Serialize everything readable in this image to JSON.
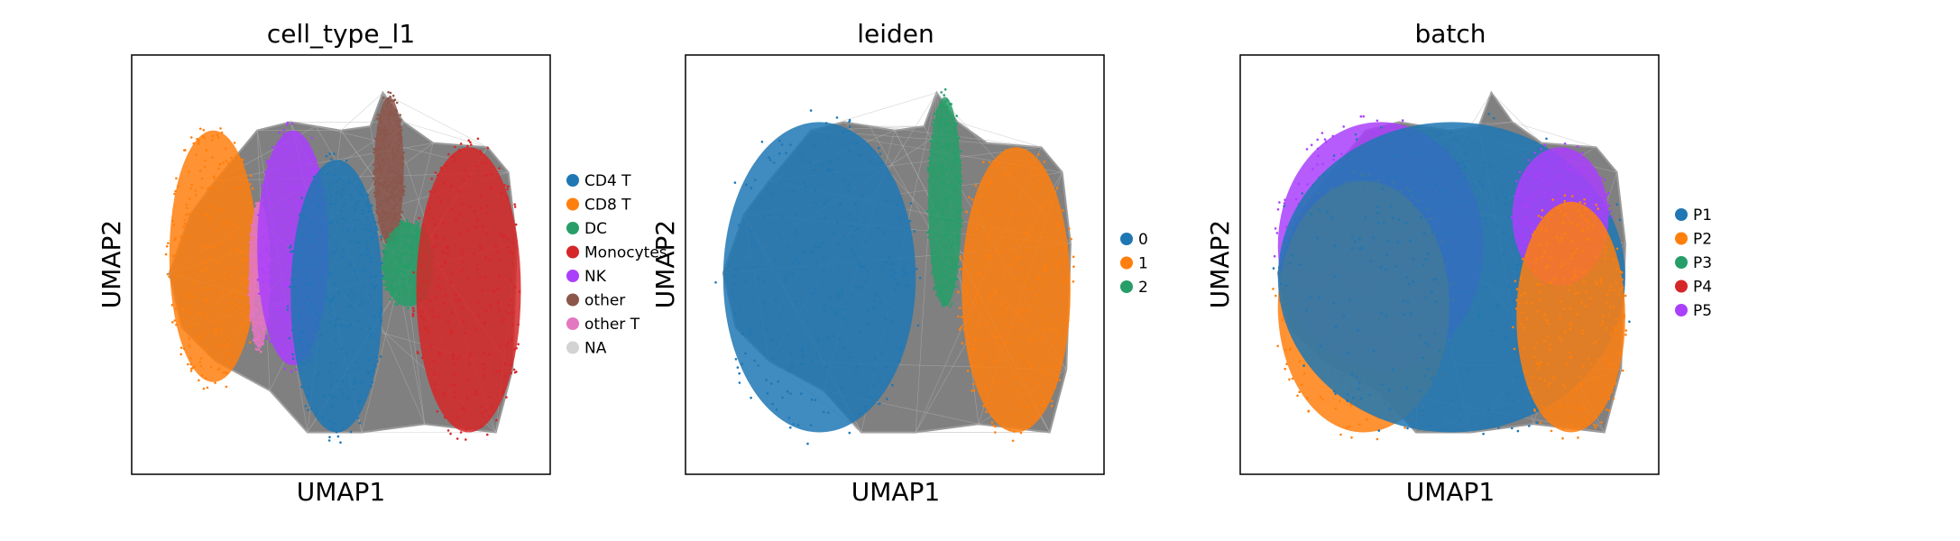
{
  "figure": {
    "grid": false,
    "edge_color": "#808080",
    "axis_frame_color": "#000000"
  },
  "chart_data": [
    {
      "type": "scatter",
      "title": "cell_type_l1",
      "xlabel": "UMAP1",
      "ylabel": "UMAP2",
      "xlim": [
        0,
        1
      ],
      "ylim": [
        0,
        1
      ],
      "legend": {
        "position": "right",
        "entries": [
          {
            "label": "CD4 T",
            "color": "#1f77b4"
          },
          {
            "label": "CD8 T",
            "color": "#ff7f0e"
          },
          {
            "label": "DC",
            "color": "#279e68"
          },
          {
            "label": "Monocytes",
            "color": "#d62728"
          },
          {
            "label": "NK",
            "color": "#aa40fc"
          },
          {
            "label": "other",
            "color": "#8c564b"
          },
          {
            "label": "other T",
            "color": "#e377c2"
          },
          {
            "label": "NA",
            "color": "#d3d3d3"
          }
        ]
      },
      "groups": [
        {
          "label": "CD8 T",
          "x": [
            0.09,
            0.3
          ],
          "y": [
            0.22,
            0.82
          ]
        },
        {
          "label": "other T",
          "x": [
            0.28,
            0.33
          ],
          "y": [
            0.3,
            0.65
          ]
        },
        {
          "label": "NK",
          "x": [
            0.3,
            0.47
          ],
          "y": [
            0.26,
            0.82
          ]
        },
        {
          "label": "CD4 T",
          "x": [
            0.38,
            0.6
          ],
          "y": [
            0.1,
            0.75
          ]
        },
        {
          "label": "other",
          "x": [
            0.58,
            0.65
          ],
          "y": [
            0.55,
            0.9
          ]
        },
        {
          "label": "DC",
          "x": [
            0.6,
            0.72
          ],
          "y": [
            0.4,
            0.6
          ]
        },
        {
          "label": "Monocytes",
          "x": [
            0.68,
            0.93
          ],
          "y": [
            0.1,
            0.78
          ]
        }
      ]
    },
    {
      "type": "scatter",
      "title": "leiden",
      "xlabel": "UMAP1",
      "ylabel": "UMAP2",
      "xlim": [
        0,
        1
      ],
      "ylim": [
        0,
        1
      ],
      "legend": {
        "position": "right",
        "entries": [
          {
            "label": "0",
            "color": "#1f77b4"
          },
          {
            "label": "1",
            "color": "#ff7f0e"
          },
          {
            "label": "2",
            "color": "#279e68"
          }
        ]
      },
      "groups": [
        {
          "label": "0",
          "x": [
            0.09,
            0.55
          ],
          "y": [
            0.1,
            0.84
          ]
        },
        {
          "label": "2",
          "x": [
            0.58,
            0.66
          ],
          "y": [
            0.4,
            0.9
          ]
        },
        {
          "label": "1",
          "x": [
            0.66,
            0.92
          ],
          "y": [
            0.1,
            0.78
          ]
        }
      ]
    },
    {
      "type": "scatter",
      "title": "batch",
      "xlabel": "UMAP1",
      "ylabel": "UMAP2",
      "xlim": [
        0,
        1
      ],
      "ylim": [
        0,
        1
      ],
      "legend": {
        "position": "right",
        "entries": [
          {
            "label": "P1",
            "color": "#1f77b4"
          },
          {
            "label": "P2",
            "color": "#ff7f0e"
          },
          {
            "label": "P3",
            "color": "#279e68"
          },
          {
            "label": "P4",
            "color": "#d62728"
          },
          {
            "label": "P5",
            "color": "#aa40fc"
          }
        ]
      },
      "groups": [
        {
          "label": "P5",
          "x": [
            0.09,
            0.58
          ],
          "y": [
            0.25,
            0.84
          ]
        },
        {
          "label": "P2",
          "x": [
            0.09,
            0.5
          ],
          "y": [
            0.1,
            0.7
          ]
        },
        {
          "label": "P1",
          "x": [
            0.09,
            0.92
          ],
          "y": [
            0.1,
            0.84
          ]
        },
        {
          "label": "P5",
          "x": [
            0.65,
            0.88
          ],
          "y": [
            0.45,
            0.78
          ]
        },
        {
          "label": "P2",
          "x": [
            0.66,
            0.92
          ],
          "y": [
            0.1,
            0.65
          ]
        }
      ]
    }
  ]
}
